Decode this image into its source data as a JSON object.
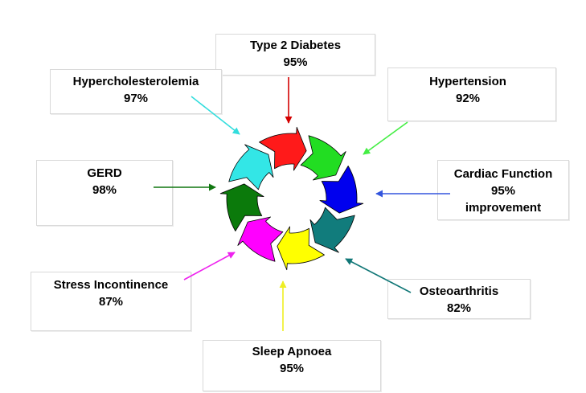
{
  "conditions": [
    {
      "key": "type2",
      "name": "Type 2 Diabetes",
      "value": "95%",
      "arrow_color": "#d40000"
    },
    {
      "key": "hypertension",
      "name": "Hypertension",
      "value": "92%",
      "arrow_color": "#44ee44"
    },
    {
      "key": "cardiac",
      "name": "Cardiac Function",
      "value": "95%",
      "note": "improvement",
      "arrow_color": "#3355dd"
    },
    {
      "key": "osteo",
      "name": "Osteoarthritis",
      "value": "82%",
      "arrow_color": "#117777"
    },
    {
      "key": "sleep",
      "name": "Sleep Apnoea",
      "value": "95%",
      "arrow_color": "#eeee22"
    },
    {
      "key": "stress",
      "name": "Stress Incontinence",
      "value": "87%",
      "arrow_color": "#ee22ee"
    },
    {
      "key": "gerd",
      "name": "GERD",
      "value": "98%",
      "arrow_color": "#117711"
    },
    {
      "key": "hyperchol",
      "name": "Hypercholesterolemia",
      "value": "97%",
      "arrow_color": "#33dddd"
    }
  ],
  "cycle_colors": [
    "#ff1a1a",
    "#22dd22",
    "#0000ee",
    "#117c7c",
    "#ffff00",
    "#ff00ff",
    "#0b7a0b",
    "#33e6e6"
  ]
}
